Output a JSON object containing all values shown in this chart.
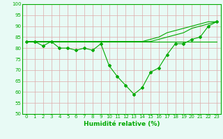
{
  "xlabel": "Humidité relative (%)",
  "background_color": "#e8faf5",
  "grid_color": "#ddaaaa",
  "line_color": "#00aa00",
  "xlim_min": -0.5,
  "xlim_max": 23.5,
  "ylim_min": 50,
  "ylim_max": 100,
  "yticks": [
    50,
    55,
    60,
    65,
    70,
    75,
    80,
    85,
    90,
    95,
    100
  ],
  "xticks": [
    0,
    1,
    2,
    3,
    4,
    5,
    6,
    7,
    8,
    9,
    10,
    11,
    12,
    13,
    14,
    15,
    16,
    17,
    18,
    19,
    20,
    21,
    22,
    23
  ],
  "line_flat": [
    83,
    83,
    83,
    83,
    83,
    83,
    83,
    83,
    83,
    83,
    83,
    83,
    83,
    83,
    83,
    83,
    83,
    83,
    83,
    83,
    83,
    83,
    83,
    83
  ],
  "line_rise1": [
    83,
    83,
    83,
    83,
    83,
    83,
    83,
    83,
    83,
    83,
    83,
    83,
    83,
    83,
    83,
    84,
    85,
    87,
    88,
    89,
    90,
    91,
    92,
    92
  ],
  "line_rise2": [
    83,
    83,
    83,
    83,
    83,
    83,
    83,
    83,
    83,
    83,
    83,
    83,
    83,
    83,
    83,
    83,
    84,
    85,
    86,
    87,
    89,
    90,
    91,
    92
  ],
  "main_line_x": [
    0,
    1,
    2,
    3,
    4,
    5,
    6,
    7,
    8,
    9,
    10,
    11,
    12,
    13,
    14,
    15,
    16,
    17,
    18,
    19,
    20,
    21,
    22,
    23
  ],
  "main_line_y": [
    83,
    83,
    81,
    83,
    80,
    80,
    79,
    80,
    79,
    82,
    72,
    67,
    63,
    59,
    62,
    69,
    71,
    77,
    82,
    82,
    84,
    85,
    90,
    92
  ],
  "xlabel_fontsize": 6.5,
  "tick_fontsize": 5.0
}
